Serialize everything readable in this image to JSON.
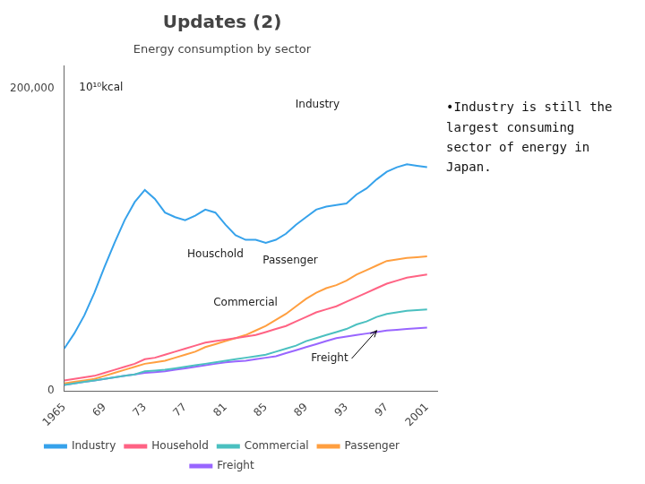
{
  "chart_data": {
    "type": "line",
    "title": "Updates (2)",
    "subtitle": "Energy consumption by sector",
    "ylabel": "10¹⁰kcal",
    "x": [
      1965,
      1966,
      1967,
      1968,
      1969,
      1970,
      1971,
      1972,
      1973,
      1974,
      1975,
      1976,
      1977,
      1978,
      1979,
      1980,
      1981,
      1982,
      1983,
      1984,
      1985,
      1986,
      1987,
      1988,
      1989,
      1990,
      1991,
      1992,
      1993,
      1994,
      1995,
      1996,
      1997,
      1998,
      1999,
      2000,
      2001
    ],
    "series": [
      {
        "name": "Industry",
        "values": [
          28000,
          38000,
          50000,
          65000,
          82000,
          98000,
          113000,
          125000,
          133000,
          127000,
          118000,
          115000,
          113000,
          116000,
          120000,
          118000,
          110000,
          103000,
          100000,
          100000,
          98000,
          100000,
          104000,
          110000,
          115000,
          120000,
          122000,
          123000,
          124000,
          130000,
          134000,
          140000,
          145000,
          148000,
          150000,
          149000,
          148000
        ]
      },
      {
        "name": "Household",
        "values": [
          7000,
          8000,
          9000,
          10000,
          12000,
          14000,
          16000,
          18000,
          21000,
          22000,
          24000,
          26000,
          28000,
          30000,
          32000,
          33000,
          34000,
          35000,
          36000,
          37000,
          39000,
          41000,
          43000,
          46000,
          49000,
          52000,
          54000,
          56000,
          59000,
          62000,
          65000,
          68000,
          71000,
          73000,
          75000,
          76000,
          77000
        ]
      },
      {
        "name": "Commercial",
        "values": [
          4000,
          5000,
          6000,
          7000,
          8000,
          9000,
          10000,
          11000,
          13000,
          13500,
          14000,
          15000,
          16000,
          17000,
          18000,
          19000,
          20000,
          21000,
          22000,
          23000,
          24000,
          26000,
          28000,
          30000,
          33000,
          35000,
          37000,
          39000,
          41000,
          44000,
          46000,
          49000,
          51000,
          52000,
          53000,
          53500,
          54000
        ]
      },
      {
        "name": "Passenger",
        "values": [
          5000,
          6000,
          7000,
          8000,
          10000,
          12000,
          14000,
          16000,
          18000,
          19000,
          20000,
          22000,
          24000,
          26000,
          29000,
          31000,
          33000,
          35000,
          37000,
          40000,
          43000,
          47000,
          51000,
          56000,
          61000,
          65000,
          68000,
          70000,
          73000,
          77000,
          80000,
          83000,
          86000,
          87000,
          88000,
          88500,
          89000
        ]
      },
      {
        "name": "Freight",
        "values": [
          4000,
          5000,
          6000,
          7000,
          8000,
          9000,
          10000,
          11000,
          12000,
          12500,
          13000,
          14000,
          15000,
          16000,
          17000,
          18000,
          19000,
          19500,
          20000,
          21000,
          22000,
          23000,
          25000,
          27000,
          29000,
          31000,
          33000,
          35000,
          36000,
          37000,
          38000,
          39000,
          40000,
          40500,
          41000,
          41500,
          42000
        ]
      }
    ],
    "xlim": [
      1965,
      2002
    ],
    "xticks": [
      1965,
      {
        "value": 1969,
        "label": "69"
      },
      {
        "value": 1973,
        "label": "73"
      },
      {
        "value": 1977,
        "label": "77"
      },
      {
        "value": 1981,
        "label": "81"
      },
      {
        "value": 1985,
        "label": "85"
      },
      {
        "value": 1989,
        "label": "89"
      },
      {
        "value": 1993,
        "label": "93"
      },
      {
        "value": 1997,
        "label": "97"
      },
      2001
    ],
    "ylim": [
      0,
      215000
    ],
    "yticks": [
      0,
      {
        "value": 200000,
        "label": "200,000"
      }
    ],
    "grid": false,
    "legend": "bottom",
    "annotations": [
      "Industry",
      "Passenger",
      "Houschold",
      "Commercial",
      "Freight",
      "•Industry is still the\nlargest consuming\nsector of energy in\nJapan."
    ]
  }
}
